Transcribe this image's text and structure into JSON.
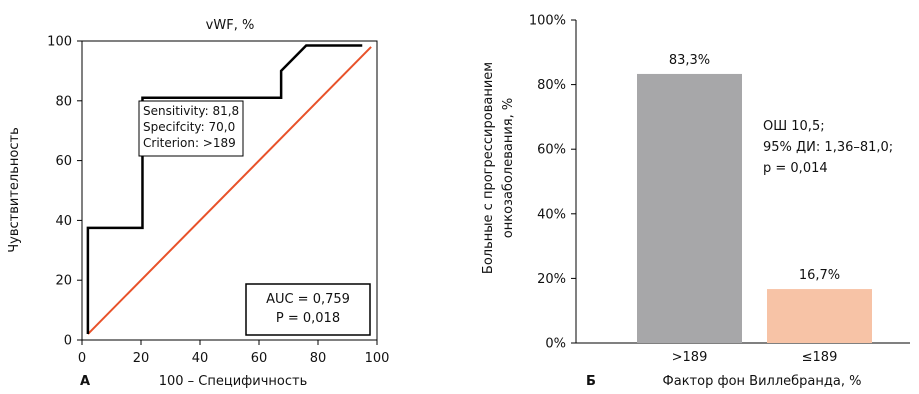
{
  "chart_data": [
    {
      "type": "line",
      "panel_letter": "А",
      "title": "vWF, %",
      "xlabel": "100 – Специфичность",
      "ylabel": "Чувствительность",
      "xlim": [
        0,
        100
      ],
      "ylim": [
        0,
        100
      ],
      "xticks": [
        "0",
        "20",
        "40",
        "60",
        "80",
        "100"
      ],
      "yticks": [
        "0",
        "20",
        "40",
        "60",
        "80",
        "100"
      ],
      "grid": false,
      "series": [
        {
          "style": "step",
          "color": "#000000",
          "x": [
            2,
            2,
            20.5,
            20.5,
            30,
            67.5,
            67.5,
            76,
            95
          ],
          "y": [
            2,
            37.5,
            37.5,
            81,
            81,
            81,
            90,
            98.5,
            98.5
          ]
        },
        {
          "style": "line",
          "color": "#e8522a",
          "x": [
            2,
            98
          ],
          "y": [
            2,
            98
          ]
        }
      ],
      "point_annotation": {
        "lines": [
          "Sensitivity: 81,8",
          "Specifcity: 70,0",
          "Criterion: >189"
        ]
      },
      "stats": {
        "lines": [
          "AUC = 0,759",
          "P = 0,018"
        ]
      }
    },
    {
      "type": "bar",
      "panel_letter": "Б",
      "xlabel": "Фактор фон Виллебранда, %",
      "ylabel_lines": [
        "Больные с прогрессированием",
        "онкозаболевания, %"
      ],
      "ylim": [
        0,
        100
      ],
      "yticks": [
        "0%",
        "20%",
        "40%",
        "60%",
        "80%",
        "100%"
      ],
      "categories": [
        ">189",
        "≤189"
      ],
      "values": [
        83.3,
        16.7
      ],
      "data_labels": [
        "83,3%",
        "16,7%"
      ],
      "colors": [
        "#a7a7a9",
        "#f7c3a6"
      ],
      "annotation": {
        "lines": [
          "ОШ 10,5;",
          "95% ДИ: 1,36–81,0;",
          "p = 0,014"
        ]
      }
    }
  ]
}
